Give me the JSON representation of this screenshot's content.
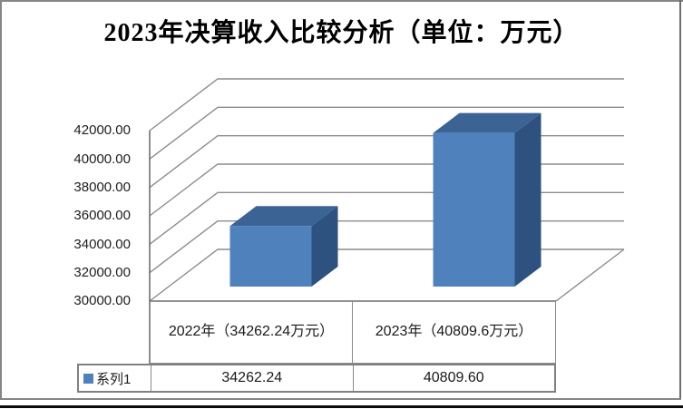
{
  "title": "2023年决算收入比较分析（单位：万元）",
  "chart_data": {
    "type": "bar",
    "style": "3d-column",
    "title": "2023年决算收入比较分析（单位：万元）",
    "categories": [
      "2022年（34262.24万元）",
      "2023年（40809.6万元）"
    ],
    "series": [
      {
        "name": "系列1",
        "values": [
          34262.24,
          40809.6
        ]
      }
    ],
    "ylim": [
      30000,
      42000
    ],
    "ytick_step": 2000,
    "yticks": [
      "42000.00",
      "40000.00",
      "38000.00",
      "36000.00",
      "34000.00",
      "32000.00",
      "30000.00"
    ],
    "grid": true,
    "legend_position": "bottom-left",
    "colors": {
      "bar_front": "#4F81BD",
      "bar_top": "#3B6394",
      "bar_side": "#2E527F",
      "gridline": "#8c8c8c",
      "axis": "#6e6e6e",
      "table_border": "#808080"
    }
  },
  "data_table": {
    "legend_label": "系列1",
    "columns": [
      "2022年（34262.24万元）",
      "2023年（40809.6万元）"
    ],
    "rows": [
      {
        "legend": "系列1",
        "values": [
          "34262.24",
          "40809.60"
        ]
      }
    ]
  }
}
